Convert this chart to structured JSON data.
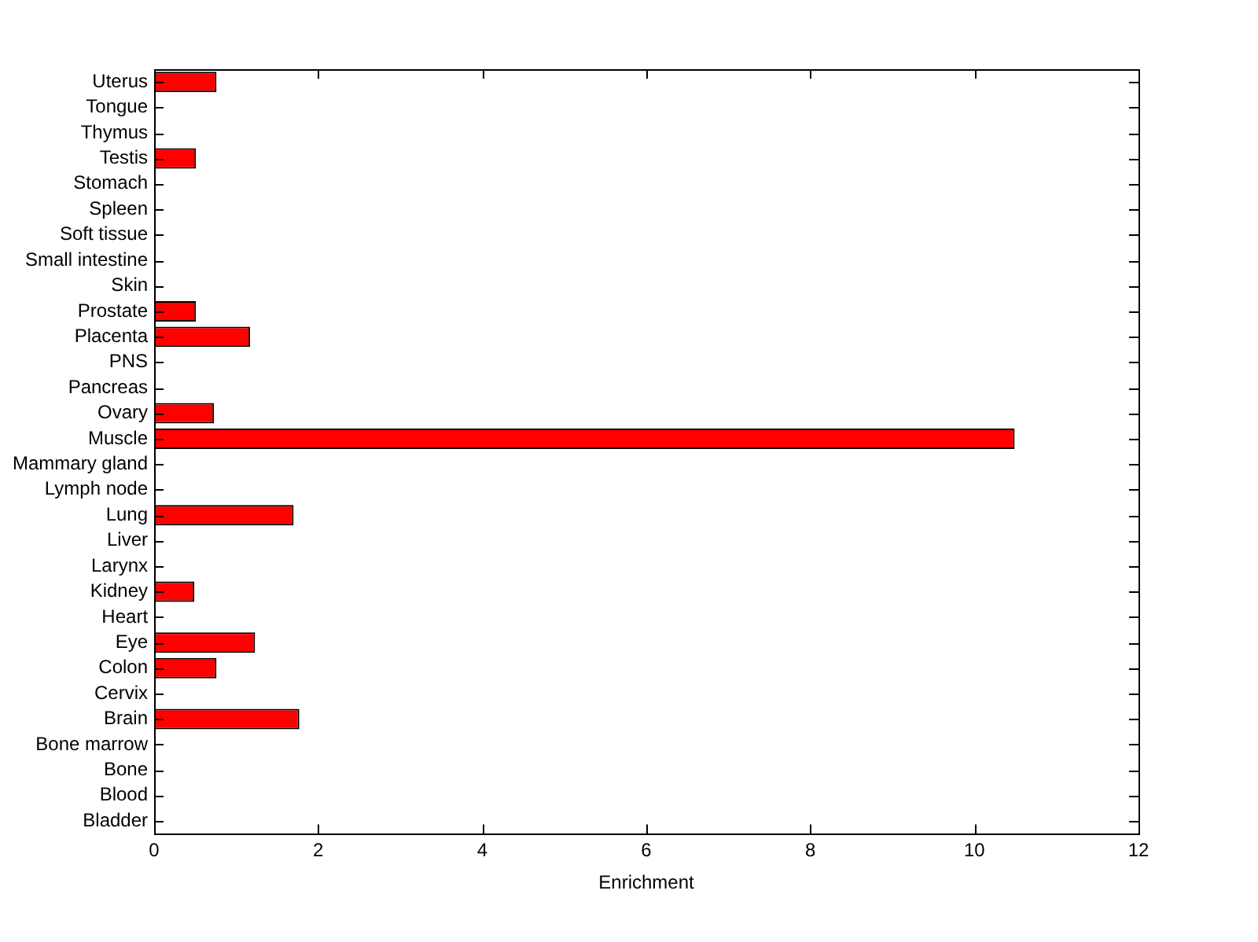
{
  "chart_data": {
    "type": "bar",
    "orientation": "horizontal",
    "xlabel": "Enrichment",
    "categories": [
      "Uterus",
      "Tongue",
      "Thymus",
      "Testis",
      "Stomach",
      "Spleen",
      "Soft tissue",
      "Small intestine",
      "Skin",
      "Prostate",
      "Placenta",
      "PNS",
      "Pancreas",
      "Ovary",
      "Muscle",
      "Mammary gland",
      "Lymph node",
      "Lung",
      "Liver",
      "Larynx",
      "Kidney",
      "Heart",
      "Eye",
      "Colon",
      "Cervix",
      "Brain",
      "Bone marrow",
      "Bone",
      "Blood",
      "Bladder"
    ],
    "values": [
      0.76,
      0,
      0,
      0.51,
      0,
      0,
      0,
      0,
      0,
      0.51,
      1.17,
      0,
      0,
      0.73,
      10.49,
      0,
      0,
      1.7,
      0,
      0,
      0.49,
      0,
      1.23,
      0.76,
      0,
      1.77,
      0,
      0,
      0,
      0
    ],
    "color": "#ff0000",
    "xlim": [
      0,
      12
    ],
    "xticks": [
      0,
      2,
      4,
      6,
      8,
      10,
      12
    ],
    "grid": false,
    "legend": false
  }
}
